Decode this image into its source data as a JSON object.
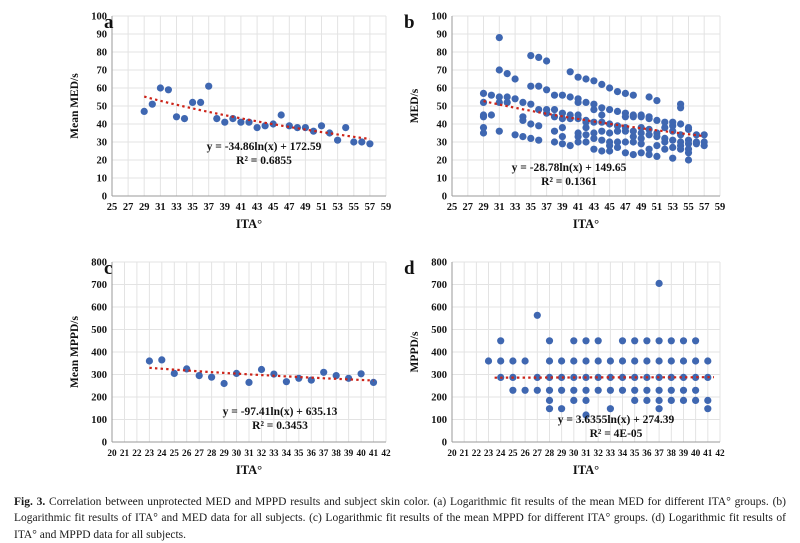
{
  "colors": {
    "point": "#3f67b1",
    "trend": "#cc2318",
    "grid": "#e3e3e3"
  },
  "caption": {
    "label": "Fig. 3.",
    "text": " Correlation between unprotected MED and MPPD results and subject skin color. (a) Logarithmic fit results of the mean MED for different ITA° groups. (b) Logarithmic fit results of ITA° and MED data for all subjects. (c) Logarithmic fit results of the mean MPPD for different ITA° groups. (d) Logarithmic fit results of ITA° and MPPD data for all subjects."
  },
  "chart_data": [
    {
      "type": "scatter",
      "panel_label": "a",
      "xlabel": "ITA°",
      "ylabel": "Mean MED/s",
      "xlim": [
        25,
        59
      ],
      "xtick_step": 2,
      "ylim": [
        0,
        100
      ],
      "ytick_step": 10,
      "grid": true,
      "equation": "y = -34.86ln(x) + 172.59",
      "r_squared": "R² = 0.6855",
      "fit": {
        "kind": "log",
        "a": -34.86,
        "b": 172.59,
        "x1": 29,
        "x2": 57
      },
      "points": [
        [
          29,
          47
        ],
        [
          30,
          51
        ],
        [
          31,
          60
        ],
        [
          32,
          59
        ],
        [
          33,
          44
        ],
        [
          34,
          43
        ],
        [
          35,
          52
        ],
        [
          36,
          52
        ],
        [
          37,
          61
        ],
        [
          38,
          43
        ],
        [
          39,
          41
        ],
        [
          40,
          43
        ],
        [
          41,
          41
        ],
        [
          42,
          41
        ],
        [
          43,
          38
        ],
        [
          44,
          39
        ],
        [
          45,
          40
        ],
        [
          46,
          45
        ],
        [
          47,
          39
        ],
        [
          48,
          38
        ],
        [
          49,
          38
        ],
        [
          50,
          36
        ],
        [
          51,
          39
        ],
        [
          52,
          35
        ],
        [
          53,
          31
        ],
        [
          54,
          38
        ],
        [
          55,
          30
        ],
        [
          56,
          30
        ],
        [
          57,
          29
        ]
      ]
    },
    {
      "type": "scatter",
      "panel_label": "b",
      "xlabel": "ITA°",
      "ylabel": "MED/s",
      "xlim": [
        25,
        59
      ],
      "xtick_step": 2,
      "ylim": [
        0,
        100
      ],
      "ytick_step": 10,
      "grid": true,
      "equation": "y = -28.78ln(x) + 149.65",
      "r_squared": "R² = 0.1361",
      "fit": {
        "kind": "log",
        "a": -28.78,
        "b": 149.65,
        "x1": 29,
        "x2": 57
      },
      "points": [
        [
          29,
          57
        ],
        [
          29,
          52
        ],
        [
          29,
          45
        ],
        [
          29,
          44
        ],
        [
          29,
          38
        ],
        [
          29,
          35
        ],
        [
          30,
          56
        ],
        [
          30,
          45
        ],
        [
          31,
          88
        ],
        [
          31,
          70
        ],
        [
          31,
          55
        ],
        [
          31,
          52
        ],
        [
          31,
          36
        ],
        [
          32,
          68
        ],
        [
          32,
          55
        ],
        [
          32,
          52
        ],
        [
          33,
          65
        ],
        [
          33,
          54
        ],
        [
          33,
          34
        ],
        [
          34,
          52
        ],
        [
          34,
          44
        ],
        [
          34,
          42
        ],
        [
          34,
          33
        ],
        [
          35,
          78
        ],
        [
          35,
          61
        ],
        [
          35,
          51
        ],
        [
          35,
          40
        ],
        [
          35,
          32
        ],
        [
          36,
          77
        ],
        [
          36,
          61
        ],
        [
          36,
          48
        ],
        [
          36,
          39
        ],
        [
          36,
          31
        ],
        [
          37,
          75
        ],
        [
          37,
          59
        ],
        [
          37,
          48
        ],
        [
          37,
          46
        ],
        [
          38,
          56
        ],
        [
          38,
          48
        ],
        [
          38,
          44
        ],
        [
          38,
          36
        ],
        [
          38,
          30
        ],
        [
          39,
          56
        ],
        [
          39,
          46
        ],
        [
          39,
          43
        ],
        [
          39,
          38
        ],
        [
          39,
          33
        ],
        [
          39,
          29
        ],
        [
          40,
          69
        ],
        [
          40,
          55
        ],
        [
          40,
          45
        ],
        [
          40,
          43
        ],
        [
          40,
          28
        ],
        [
          41,
          66
        ],
        [
          41,
          54
        ],
        [
          41,
          52
        ],
        [
          41,
          45
        ],
        [
          41,
          43
        ],
        [
          41,
          35
        ],
        [
          41,
          33
        ],
        [
          41,
          30
        ],
        [
          42,
          65
        ],
        [
          42,
          52
        ],
        [
          42,
          42
        ],
        [
          42,
          41
        ],
        [
          42,
          38
        ],
        [
          42,
          34
        ],
        [
          42,
          30
        ],
        [
          43,
          64
        ],
        [
          43,
          51
        ],
        [
          43,
          48
        ],
        [
          43,
          41
        ],
        [
          43,
          35
        ],
        [
          43,
          32
        ],
        [
          43,
          26
        ],
        [
          44,
          62
        ],
        [
          44,
          49
        ],
        [
          44,
          45
        ],
        [
          44,
          41
        ],
        [
          44,
          36
        ],
        [
          44,
          31
        ],
        [
          44,
          25
        ],
        [
          45,
          60
        ],
        [
          45,
          48
        ],
        [
          45,
          40
        ],
        [
          45,
          35
        ],
        [
          45,
          30
        ],
        [
          45,
          28
        ],
        [
          45,
          25
        ],
        [
          46,
          58
        ],
        [
          46,
          47
        ],
        [
          46,
          39
        ],
        [
          46,
          36
        ],
        [
          46,
          30
        ],
        [
          46,
          27
        ],
        [
          47,
          57
        ],
        [
          47,
          46
        ],
        [
          47,
          44
        ],
        [
          47,
          38
        ],
        [
          47,
          36
        ],
        [
          47,
          30
        ],
        [
          47,
          24
        ],
        [
          48,
          56
        ],
        [
          48,
          45
        ],
        [
          48,
          44
        ],
        [
          48,
          36
        ],
        [
          48,
          33
        ],
        [
          48,
          30
        ],
        [
          48,
          23
        ],
        [
          49,
          45
        ],
        [
          49,
          44
        ],
        [
          49,
          38
        ],
        [
          49,
          35
        ],
        [
          49,
          32
        ],
        [
          49,
          29
        ],
        [
          49,
          24
        ],
        [
          50,
          55
        ],
        [
          50,
          44
        ],
        [
          50,
          43
        ],
        [
          50,
          37
        ],
        [
          50,
          34
        ],
        [
          50,
          26
        ],
        [
          50,
          23
        ],
        [
          51,
          53
        ],
        [
          51,
          42
        ],
        [
          51,
          35
        ],
        [
          51,
          33
        ],
        [
          51,
          28
        ],
        [
          51,
          22
        ],
        [
          52,
          41
        ],
        [
          52,
          38
        ],
        [
          52,
          32
        ],
        [
          52,
          30
        ],
        [
          52,
          26
        ],
        [
          53,
          41
        ],
        [
          53,
          39
        ],
        [
          53,
          36
        ],
        [
          53,
          31
        ],
        [
          53,
          27
        ],
        [
          53,
          21
        ],
        [
          54,
          51
        ],
        [
          54,
          49
        ],
        [
          54,
          40
        ],
        [
          54,
          34
        ],
        [
          54,
          30
        ],
        [
          54,
          28
        ],
        [
          54,
          26
        ],
        [
          55,
          38
        ],
        [
          55,
          37
        ],
        [
          55,
          31
        ],
        [
          55,
          29
        ],
        [
          55,
          26
        ],
        [
          55,
          24
        ],
        [
          55,
          20
        ],
        [
          56,
          34
        ],
        [
          56,
          30
        ],
        [
          56,
          29
        ],
        [
          57,
          34
        ],
        [
          57,
          30
        ],
        [
          57,
          28
        ]
      ]
    },
    {
      "type": "scatter",
      "panel_label": "c",
      "xlabel": "ITA°",
      "ylabel": "Mean MPPD/s",
      "xlim": [
        20,
        42
      ],
      "xtick_step": 1,
      "ylim": [
        0,
        800
      ],
      "ytick_step": 100,
      "grid": true,
      "equation": "y = -97.41ln(x) + 635.13",
      "r_squared": "R² = 0.3453",
      "fit": {
        "kind": "log",
        "a": -97.41,
        "b": 635.13,
        "x1": 23,
        "x2": 41
      },
      "points": [
        [
          23,
          360
        ],
        [
          24,
          365
        ],
        [
          25,
          305
        ],
        [
          26,
          325
        ],
        [
          27,
          295
        ],
        [
          28,
          288
        ],
        [
          29,
          260
        ],
        [
          30,
          305
        ],
        [
          31,
          265
        ],
        [
          32,
          322
        ],
        [
          33,
          302
        ],
        [
          34,
          268
        ],
        [
          35,
          283
        ],
        [
          36,
          275
        ],
        [
          37,
          310
        ],
        [
          38,
          295
        ],
        [
          39,
          283
        ],
        [
          40,
          303
        ],
        [
          41,
          265
        ]
      ]
    },
    {
      "type": "scatter",
      "panel_label": "d",
      "xlabel": "ITA°",
      "ylabel": "MPPD/s",
      "xlim": [
        20,
        42
      ],
      "xtick_step": 1,
      "ylim": [
        0,
        800
      ],
      "ytick_step": 100,
      "grid": true,
      "equation": "y = 3.6355ln(x) + 274.39",
      "r_squared": "R² = 4E-05",
      "fit": {
        "kind": "log",
        "a": 3.6355,
        "b": 274.39,
        "x1": 23.5,
        "x2": 41.5
      },
      "points": [
        [
          23,
          360
        ],
        [
          24,
          450
        ],
        [
          24,
          360
        ],
        [
          24,
          287
        ],
        [
          25,
          360
        ],
        [
          25,
          287
        ],
        [
          25,
          230
        ],
        [
          26,
          360
        ],
        [
          26,
          230
        ],
        [
          27,
          563
        ],
        [
          27,
          287
        ],
        [
          27,
          230
        ],
        [
          28,
          450
        ],
        [
          28,
          360
        ],
        [
          28,
          287
        ],
        [
          28,
          230
        ],
        [
          28,
          185
        ],
        [
          28,
          148
        ],
        [
          29,
          360
        ],
        [
          29,
          287
        ],
        [
          29,
          230
        ],
        [
          29,
          148
        ],
        [
          30,
          450
        ],
        [
          30,
          360
        ],
        [
          30,
          287
        ],
        [
          30,
          230
        ],
        [
          30,
          185
        ],
        [
          31,
          450
        ],
        [
          31,
          360
        ],
        [
          31,
          287
        ],
        [
          31,
          230
        ],
        [
          31,
          185
        ],
        [
          31,
          120
        ],
        [
          32,
          450
        ],
        [
          32,
          360
        ],
        [
          32,
          287
        ],
        [
          32,
          230
        ],
        [
          33,
          360
        ],
        [
          33,
          287
        ],
        [
          33,
          230
        ],
        [
          33,
          148
        ],
        [
          34,
          450
        ],
        [
          34,
          360
        ],
        [
          34,
          287
        ],
        [
          34,
          230
        ],
        [
          35,
          450
        ],
        [
          35,
          360
        ],
        [
          35,
          287
        ],
        [
          35,
          230
        ],
        [
          35,
          185
        ],
        [
          36,
          450
        ],
        [
          36,
          360
        ],
        [
          36,
          287
        ],
        [
          36,
          230
        ],
        [
          36,
          185
        ],
        [
          37,
          705
        ],
        [
          37,
          450
        ],
        [
          37,
          360
        ],
        [
          37,
          287
        ],
        [
          37,
          230
        ],
        [
          37,
          185
        ],
        [
          37,
          148
        ],
        [
          38,
          450
        ],
        [
          38,
          360
        ],
        [
          38,
          287
        ],
        [
          38,
          230
        ],
        [
          38,
          185
        ],
        [
          39,
          450
        ],
        [
          39,
          360
        ],
        [
          39,
          287
        ],
        [
          39,
          230
        ],
        [
          39,
          185
        ],
        [
          40,
          450
        ],
        [
          40,
          360
        ],
        [
          40,
          287
        ],
        [
          40,
          230
        ],
        [
          40,
          185
        ],
        [
          41,
          360
        ],
        [
          41,
          287
        ],
        [
          41,
          185
        ],
        [
          41,
          148
        ]
      ]
    }
  ]
}
